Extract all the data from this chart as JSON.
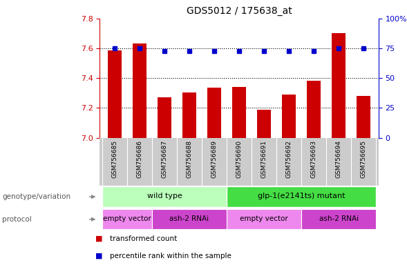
{
  "title": "GDS5012 / 175638_at",
  "samples": [
    "GSM756685",
    "GSM756686",
    "GSM756687",
    "GSM756688",
    "GSM756689",
    "GSM756690",
    "GSM756691",
    "GSM756692",
    "GSM756693",
    "GSM756694",
    "GSM756695"
  ],
  "red_values": [
    7.585,
    7.635,
    7.27,
    7.305,
    7.335,
    7.34,
    7.19,
    7.29,
    7.385,
    7.7,
    7.28
  ],
  "blue_values": [
    75,
    75,
    73,
    73,
    73,
    73,
    73,
    73,
    73,
    75,
    75
  ],
  "ylim_left": [
    7.0,
    7.8
  ],
  "ylim_right": [
    0,
    100
  ],
  "yticks_left": [
    7.0,
    7.2,
    7.4,
    7.6,
    7.8
  ],
  "yticks_right": [
    0,
    25,
    50,
    75,
    100
  ],
  "bar_color": "#cc0000",
  "dot_color": "#0000cc",
  "bar_bottom": 7.0,
  "geno_wt_color": "#bbffbb",
  "geno_mut_color": "#44dd44",
  "proto_ev_color": "#ee88ee",
  "proto_ash_color": "#cc44cc",
  "sample_bg_color": "#cccccc",
  "left_label_color": "#cc0000",
  "right_label_color": "#0000cc",
  "arrow_color": "#888888",
  "label_color": "#555555",
  "bg_color": "#ffffff"
}
